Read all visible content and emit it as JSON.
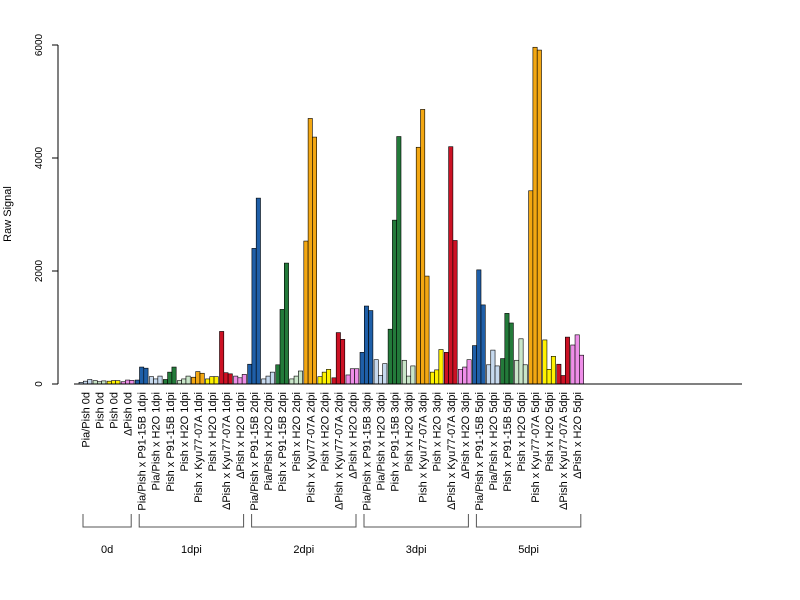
{
  "chart_data": {
    "type": "bar",
    "ylabel": "Raw Signal",
    "ylim": [
      0,
      6000
    ],
    "yticks": [
      0,
      2000,
      4000,
      6000
    ],
    "grid": false,
    "legend": "none",
    "colors": {
      "blue": "#1f5fa8",
      "light_blue": "#c6d9ee",
      "green": "#237a3a",
      "light_green": "#c9e6c9",
      "orange": "#f3a712",
      "yellow": "#fff200",
      "red": "#cc1124",
      "pink": "#ee8ee8"
    },
    "categories": [
      {
        "label": "Pia/Pish 0d",
        "color": "light_blue",
        "values": [
          30,
          50,
          80
        ]
      },
      {
        "label": "Pish 0d",
        "color": "light_green",
        "values": [
          60,
          40,
          55
        ]
      },
      {
        "label": "Pish 0d",
        "color": "yellow",
        "values": [
          50,
          60,
          60
        ]
      },
      {
        "label": "ΔPish 0d",
        "color": "pink",
        "values": [
          40,
          70,
          65
        ]
      },
      {
        "label": "Pia/Pish x P91-15B 1dpi",
        "color": "blue",
        "values": [
          70,
          300,
          280
        ]
      },
      {
        "label": "Pia/Pish x H2O 1dpi",
        "color": "light_blue",
        "values": [
          130,
          90,
          140
        ]
      },
      {
        "label": "Pish x P91-15B 1dpi",
        "color": "green",
        "values": [
          80,
          210,
          300
        ]
      },
      {
        "label": "Pish x H2O 1dpi",
        "color": "light_green",
        "values": [
          60,
          90,
          140
        ]
      },
      {
        "label": "Pish x Kyu77-07A 1dpi",
        "color": "orange",
        "values": [
          120,
          220,
          190
        ]
      },
      {
        "label": "Pish x H2O 1dpi",
        "color": "yellow",
        "values": [
          90,
          130,
          130
        ]
      },
      {
        "label": "ΔPish x Kyu77-07A 1dpi",
        "color": "red",
        "values": [
          930,
          200,
          180
        ]
      },
      {
        "label": "ΔPish x H2O 1dpi",
        "color": "pink",
        "values": [
          140,
          110,
          170
        ]
      },
      {
        "label": "Pia/Pish x P91-15B 2dpi",
        "color": "blue",
        "values": [
          350,
          2400,
          3290
        ]
      },
      {
        "label": "Pia/Pish x H2O 2dpi",
        "color": "light_blue",
        "values": [
          90,
          140,
          210
        ]
      },
      {
        "label": "Pish x P91-15B 2dpi",
        "color": "green",
        "values": [
          340,
          1320,
          2140
        ]
      },
      {
        "label": "Pish x H2O 2dpi",
        "color": "light_green",
        "values": [
          90,
          140,
          230
        ]
      },
      {
        "label": "Pish x Kyu77-07A 2dpi",
        "color": "orange",
        "values": [
          2530,
          4700,
          4370
        ]
      },
      {
        "label": "Pish x H2O 2dpi",
        "color": "yellow",
        "values": [
          130,
          210,
          260
        ]
      },
      {
        "label": "ΔPish x Kyu77-07A 2dpi",
        "color": "red",
        "values": [
          110,
          910,
          790
        ]
      },
      {
        "label": "ΔPish x H2O 2dpi",
        "color": "pink",
        "values": [
          160,
          270,
          270
        ]
      },
      {
        "label": "Pia/Pish x P91-15B 3dpi",
        "color": "blue",
        "values": [
          560,
          1380,
          1300
        ]
      },
      {
        "label": "Pia/Pish x H2O 3dpi",
        "color": "light_blue",
        "values": [
          430,
          150,
          360
        ]
      },
      {
        "label": "Pish x P91-15B 3dpi",
        "color": "green",
        "values": [
          970,
          2900,
          4380
        ]
      },
      {
        "label": "Pish x H2O 3dpi",
        "color": "light_green",
        "values": [
          420,
          140,
          320
        ]
      },
      {
        "label": "Pish x Kyu77-07A 3dpi",
        "color": "orange",
        "values": [
          4190,
          4860,
          1910
        ]
      },
      {
        "label": "Pish x H2O 3dpi",
        "color": "yellow",
        "values": [
          210,
          250,
          610
        ]
      },
      {
        "label": "ΔPish x Kyu77-07A 3dpi",
        "color": "red",
        "values": [
          560,
          4200,
          2540
        ]
      },
      {
        "label": "ΔPish x H2O 3dpi",
        "color": "pink",
        "values": [
          260,
          300,
          430
        ]
      },
      {
        "label": "Pia/Pish x P91-15B 5dpi",
        "color": "blue",
        "values": [
          680,
          2020,
          1400
        ]
      },
      {
        "label": "Pia/Pish x H2O 5dpi",
        "color": "light_blue",
        "values": [
          340,
          600,
          320
        ]
      },
      {
        "label": "Pish x P91-15B 5dpi",
        "color": "green",
        "values": [
          450,
          1250,
          1080
        ]
      },
      {
        "label": "Pish x H2O 5dpi",
        "color": "light_green",
        "values": [
          420,
          800,
          340
        ]
      },
      {
        "label": "Pish x Kyu77-07A 5dpi",
        "color": "orange",
        "values": [
          3420,
          5960,
          5910
        ]
      },
      {
        "label": "Pish x H2O 5dpi",
        "color": "yellow",
        "values": [
          780,
          260,
          490
        ]
      },
      {
        "label": "ΔPish x Kyu77-07A 5dpi",
        "color": "red",
        "values": [
          350,
          150,
          830
        ]
      },
      {
        "label": "ΔPish x H2O 5dpi",
        "color": "pink",
        "values": [
          690,
          870,
          510
        ]
      }
    ],
    "groups": [
      {
        "label": "0d",
        "from": 0,
        "to": 3
      },
      {
        "label": "1dpi",
        "from": 4,
        "to": 11
      },
      {
        "label": "2dpi",
        "from": 12,
        "to": 19
      },
      {
        "label": "3dpi",
        "from": 20,
        "to": 27
      },
      {
        "label": "5dpi",
        "from": 28,
        "to": 35
      }
    ]
  }
}
